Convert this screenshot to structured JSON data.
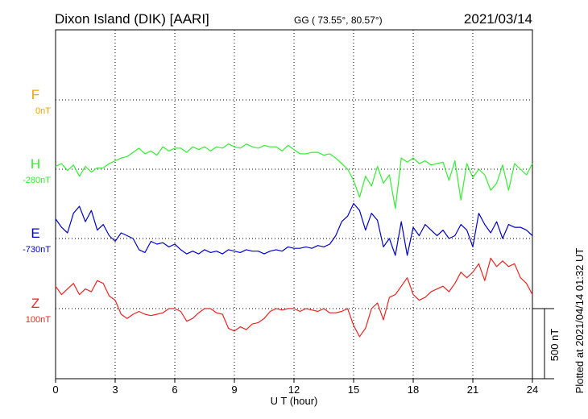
{
  "header": {
    "station": "Dixon Island (DIK)  [AARI]",
    "coords": "GG ( 73.55°,  80.57°)",
    "date": "2021/03/14"
  },
  "footer": {
    "plotted": "Plotted at 2021/04/14 01:32 UT"
  },
  "chart_data": {
    "type": "line",
    "xlabel": "U T (hour)",
    "xlim": [
      0,
      24
    ],
    "xticks": [
      "0",
      "3",
      "6",
      "9",
      "12",
      "15",
      "18",
      "21",
      "24"
    ],
    "scale_label": "500 nT",
    "channels": [
      {
        "name": "F",
        "baseline": "0nT",
        "color": "#f0a000"
      },
      {
        "name": "H",
        "baseline": "-280nT",
        "color": "#33ee33"
      },
      {
        "name": "E",
        "baseline": "-730nT",
        "color": "#0000cc"
      },
      {
        "name": "Z",
        "baseline": "100nT",
        "color": "#ee2222"
      }
    ],
    "series": [
      {
        "name": "H",
        "color": "#33ee33",
        "x": [
          0,
          0.3,
          0.6,
          0.9,
          1.2,
          1.5,
          1.8,
          2.1,
          2.4,
          2.7,
          3.0,
          3.3,
          3.6,
          3.9,
          4.2,
          4.5,
          4.8,
          5.1,
          5.4,
          5.7,
          6.0,
          6.3,
          6.6,
          6.9,
          7.2,
          7.5,
          7.8,
          8.1,
          8.4,
          8.7,
          9.0,
          9.3,
          9.6,
          9.9,
          10.2,
          10.5,
          10.8,
          11.1,
          11.4,
          11.7,
          12.0,
          12.3,
          12.6,
          12.9,
          13.2,
          13.5,
          13.8,
          14.1,
          14.4,
          14.7,
          15.0,
          15.3,
          15.6,
          15.9,
          16.2,
          16.5,
          16.8,
          17.1,
          17.4,
          17.7,
          18.0,
          18.3,
          18.6,
          18.9,
          19.2,
          19.5,
          19.8,
          20.1,
          20.4,
          20.7,
          21.0,
          21.3,
          21.6,
          21.9,
          22.2,
          22.5,
          22.8,
          23.1,
          23.4,
          23.7,
          24.0
        ],
        "y": [
          20,
          40,
          -10,
          30,
          -50,
          20,
          -20,
          10,
          10,
          40,
          60,
          80,
          90,
          120,
          150,
          110,
          130,
          100,
          160,
          130,
          150,
          150,
          120,
          160,
          140,
          160,
          130,
          160,
          150,
          180,
          160,
          150,
          180,
          160,
          150,
          170,
          160,
          160,
          130,
          170,
          140,
          110,
          110,
          120,
          120,
          100,
          110,
          80,
          40,
          0,
          -80,
          -200,
          -50,
          -120,
          20,
          -100,
          -40,
          -280,
          80,
          50,
          80,
          40,
          60,
          30,
          40,
          50,
          -80,
          60,
          -220,
          40,
          -60,
          0,
          -40,
          -150,
          -100,
          30,
          -150,
          40,
          0,
          -40,
          40
        ]
      },
      {
        "name": "E",
        "color": "#0000cc",
        "x": [
          0,
          0.3,
          0.6,
          0.9,
          1.2,
          1.5,
          1.8,
          2.1,
          2.4,
          2.7,
          3.0,
          3.3,
          3.6,
          3.9,
          4.2,
          4.5,
          4.8,
          5.1,
          5.4,
          5.7,
          6.0,
          6.3,
          6.6,
          6.9,
          7.2,
          7.5,
          7.8,
          8.1,
          8.4,
          8.7,
          9.0,
          9.3,
          9.6,
          9.9,
          10.2,
          10.5,
          10.8,
          11.1,
          11.4,
          11.7,
          12.0,
          12.3,
          12.6,
          12.9,
          13.2,
          13.5,
          13.8,
          14.1,
          14.4,
          14.7,
          15.0,
          15.3,
          15.6,
          15.9,
          16.2,
          16.5,
          16.8,
          17.1,
          17.4,
          17.7,
          18.0,
          18.3,
          18.6,
          18.9,
          19.2,
          19.5,
          19.8,
          20.1,
          20.4,
          20.7,
          21.0,
          21.3,
          21.6,
          21.9,
          22.2,
          22.5,
          22.8,
          23.1,
          23.4,
          23.7,
          24.0
        ],
        "y": [
          140,
          80,
          40,
          180,
          230,
          120,
          200,
          60,
          100,
          20,
          -20,
          40,
          20,
          0,
          -80,
          -100,
          -20,
          -40,
          -30,
          -60,
          -40,
          -80,
          -110,
          -90,
          -110,
          -80,
          -100,
          -90,
          -110,
          -80,
          -90,
          -100,
          -80,
          -90,
          -90,
          -110,
          -90,
          -80,
          -90,
          -60,
          -70,
          -70,
          -60,
          -70,
          -50,
          -60,
          -40,
          20,
          120,
          160,
          250,
          200,
          60,
          180,
          130,
          -60,
          0,
          -120,
          120,
          -120,
          80,
          20,
          100,
          60,
          20,
          60,
          0,
          20,
          100,
          60,
          -60,
          180,
          100,
          40,
          120,
          0,
          100,
          80,
          80,
          60,
          20
        ]
      },
      {
        "name": "Z",
        "color": "#ee2222",
        "x": [
          0,
          0.3,
          0.6,
          0.9,
          1.2,
          1.5,
          1.8,
          2.1,
          2.4,
          2.7,
          3.0,
          3.3,
          3.6,
          3.9,
          4.2,
          4.5,
          4.8,
          5.1,
          5.4,
          5.7,
          6.0,
          6.3,
          6.6,
          6.9,
          7.2,
          7.5,
          7.8,
          8.1,
          8.4,
          8.7,
          9.0,
          9.3,
          9.6,
          9.9,
          10.2,
          10.5,
          10.8,
          11.1,
          11.4,
          11.7,
          12.0,
          12.3,
          12.6,
          12.9,
          13.2,
          13.5,
          13.8,
          14.1,
          14.4,
          14.7,
          15.0,
          15.3,
          15.6,
          15.9,
          16.2,
          16.5,
          16.8,
          17.1,
          17.4,
          17.7,
          18.0,
          18.3,
          18.6,
          18.9,
          19.2,
          19.5,
          19.8,
          20.1,
          20.4,
          20.7,
          21.0,
          21.3,
          21.6,
          21.9,
          22.2,
          22.5,
          22.8,
          23.1,
          23.4,
          23.7,
          24.0
        ],
        "y": [
          160,
          100,
          140,
          180,
          100,
          140,
          120,
          200,
          180,
          90,
          60,
          -40,
          -70,
          -40,
          -20,
          -40,
          -50,
          -40,
          -30,
          0,
          0,
          -20,
          -90,
          -70,
          -30,
          0,
          0,
          -30,
          -40,
          -140,
          -160,
          -130,
          -150,
          -110,
          -100,
          -70,
          -20,
          0,
          -10,
          0,
          0,
          -20,
          0,
          -10,
          -20,
          0,
          -30,
          -30,
          -20,
          0,
          -120,
          -200,
          -140,
          0,
          40,
          -80,
          80,
          100,
          160,
          220,
          100,
          60,
          80,
          120,
          140,
          160,
          120,
          180,
          260,
          220,
          260,
          320,
          200,
          360,
          300,
          340,
          300,
          320,
          220,
          180,
          100
        ]
      }
    ]
  }
}
